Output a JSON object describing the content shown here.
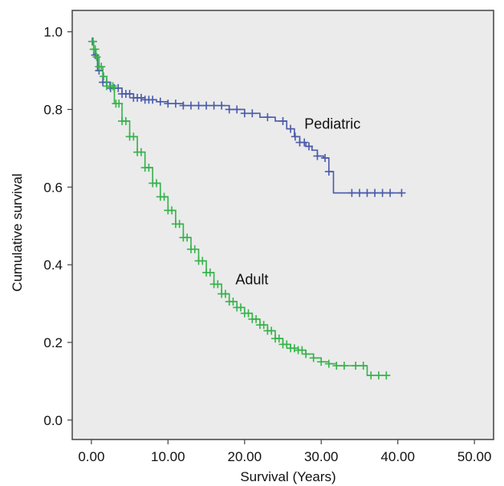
{
  "chart_data": {
    "type": "line",
    "title": "",
    "xlabel": "Survival (Years)",
    "ylabel": "Cumulative survival",
    "xlim": [
      -2.5,
      52.5
    ],
    "ylim": [
      -0.05,
      1.055
    ],
    "x_ticks": [
      0,
      10,
      20,
      30,
      40,
      50
    ],
    "x_tick_labels": [
      "0.00",
      "10.00",
      "20.00",
      "30.00",
      "40.00",
      "50.00"
    ],
    "y_ticks": [
      0.0,
      0.2,
      0.4,
      0.6,
      0.8,
      1.0
    ],
    "y_tick_labels": [
      "0.0",
      "0.2",
      "0.4",
      "0.6",
      "0.8",
      "1.0"
    ],
    "grid": false,
    "plot_background": "#ebebeb",
    "series": [
      {
        "name": "Pediatric",
        "color": "#4a5bab",
        "step": true,
        "x": [
          0,
          0.3,
          0.8,
          1.5,
          2.5,
          4,
          5.5,
          7,
          8.5,
          10,
          12,
          14,
          16,
          18,
          20,
          22,
          24,
          25.5,
          26.5,
          27.2,
          28,
          28.8,
          29.5,
          30.3,
          31,
          31.6,
          32.5,
          34,
          36,
          38,
          40.5
        ],
        "y": [
          0.975,
          0.94,
          0.9,
          0.87,
          0.855,
          0.84,
          0.83,
          0.825,
          0.82,
          0.815,
          0.81,
          0.81,
          0.81,
          0.8,
          0.79,
          0.78,
          0.77,
          0.75,
          0.73,
          0.715,
          0.705,
          0.695,
          0.68,
          0.675,
          0.64,
          0.585,
          0.585,
          0.585,
          0.585,
          0.585,
          0.585
        ],
        "censor_x": [
          0.2,
          0.5,
          1,
          1.5,
          2,
          2.5,
          3,
          3.5,
          4,
          4.5,
          5,
          5.5,
          6,
          6.5,
          7,
          7.5,
          8,
          9,
          10,
          11,
          12,
          13,
          14,
          15,
          16,
          17,
          18,
          19,
          20,
          21,
          23,
          25,
          26,
          26.6,
          27.2,
          27.8,
          28.4,
          29.5,
          30.5,
          31,
          34,
          35,
          36,
          37,
          38,
          39,
          40.5
        ]
      },
      {
        "name": "Adult",
        "color": "#35b34a",
        "step": true,
        "x": [
          0,
          0.3,
          0.6,
          1,
          1.5,
          2,
          3,
          4,
          5,
          6,
          7,
          8,
          9,
          10,
          11,
          12,
          13,
          14,
          15,
          16,
          17,
          18,
          19,
          20,
          21,
          22,
          23,
          24,
          25,
          26,
          27,
          28,
          29,
          30,
          31,
          32,
          33,
          34,
          35,
          36,
          37,
          38,
          39
        ],
        "y": [
          0.975,
          0.955,
          0.935,
          0.91,
          0.885,
          0.86,
          0.815,
          0.77,
          0.73,
          0.69,
          0.65,
          0.61,
          0.575,
          0.54,
          0.505,
          0.47,
          0.44,
          0.41,
          0.38,
          0.35,
          0.325,
          0.305,
          0.29,
          0.275,
          0.26,
          0.245,
          0.23,
          0.21,
          0.195,
          0.185,
          0.18,
          0.17,
          0.16,
          0.15,
          0.145,
          0.14,
          0.14,
          0.14,
          0.14,
          0.115,
          0.115,
          0.115,
          0.115
        ],
        "censor_x": [
          0.1,
          0.3,
          0.5,
          0.7,
          1,
          1.3,
          1.6,
          2,
          2.4,
          2.8,
          3.2,
          3.6,
          4,
          4.5,
          5,
          5.5,
          6,
          6.5,
          7,
          7.5,
          8,
          8.5,
          9,
          9.5,
          10,
          10.5,
          11,
          11.5,
          12,
          12.5,
          13,
          13.5,
          14,
          14.5,
          15,
          15.5,
          16,
          16.5,
          17,
          17.5,
          18,
          18.5,
          19,
          19.5,
          20,
          20.5,
          21,
          21.5,
          22,
          22.5,
          23,
          23.5,
          24,
          24.5,
          25,
          25.5,
          26,
          26.5,
          27,
          27.5,
          28,
          29,
          30,
          31,
          32,
          33,
          34.5,
          35.5,
          36.5,
          37.5,
          38.5
        ]
      }
    ],
    "annotations": [
      {
        "text": "Pediatric",
        "x": 27.8,
        "y": 0.75
      },
      {
        "text": "Adult",
        "x": 18.8,
        "y": 0.35
      }
    ]
  }
}
